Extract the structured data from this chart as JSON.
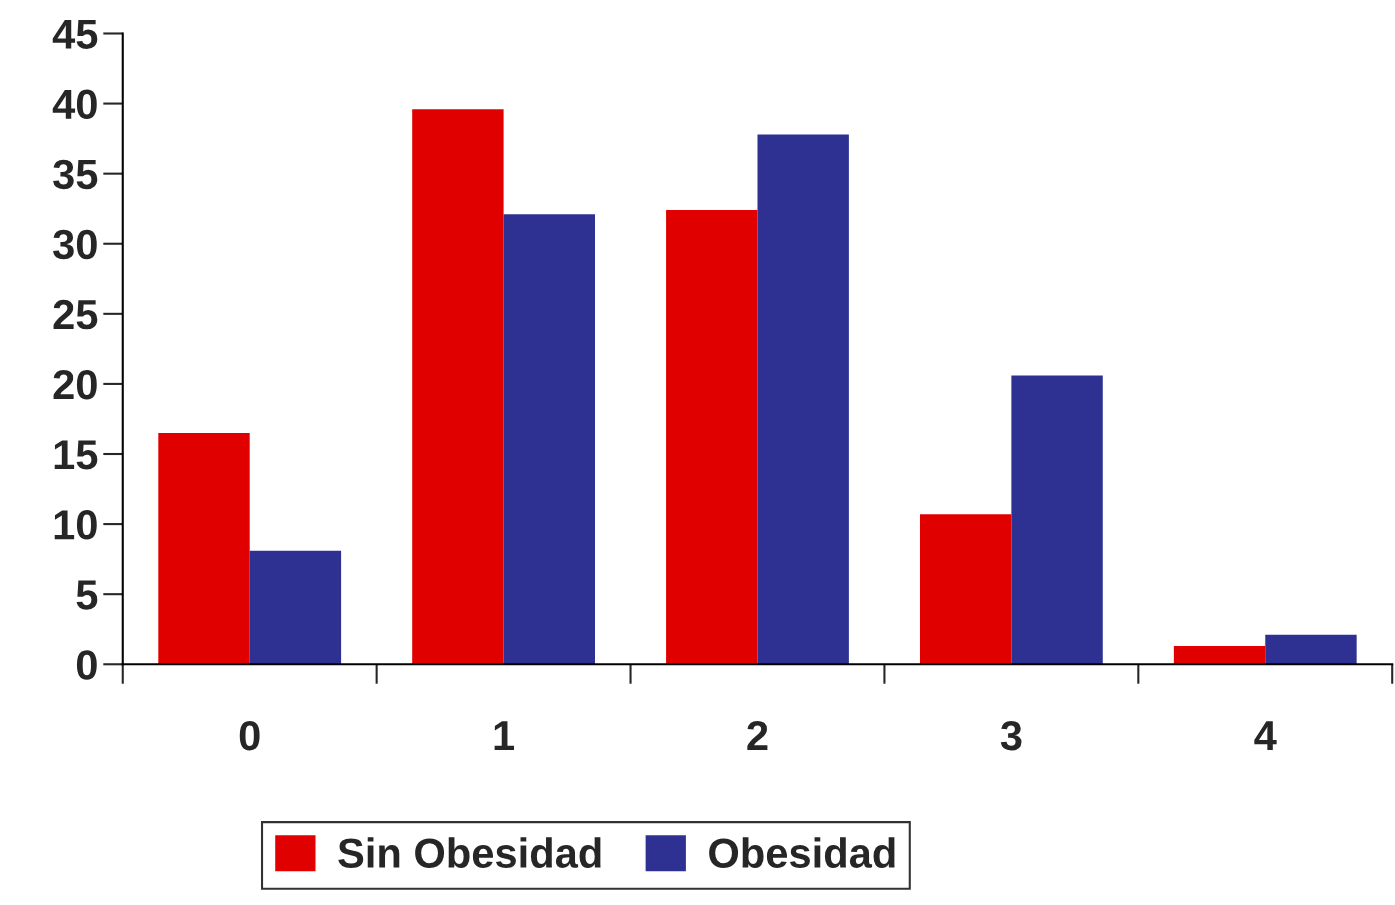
{
  "chart_data": {
    "type": "bar",
    "categories": [
      "0",
      "1",
      "2",
      "3",
      "4"
    ],
    "series": [
      {
        "name": "Sin Obesidad",
        "color": "#e00000",
        "values": [
          16.5,
          39.6,
          32.4,
          10.7,
          1.3
        ]
      },
      {
        "name": "Obesidad",
        "color": "#2e3192",
        "values": [
          8.1,
          32.1,
          37.8,
          20.6,
          2.1
        ]
      }
    ],
    "ylim": [
      0,
      45
    ],
    "yticks": [
      0,
      5,
      10,
      15,
      20,
      25,
      30,
      35,
      40,
      45
    ],
    "grid": false,
    "legend": "bottom"
  }
}
